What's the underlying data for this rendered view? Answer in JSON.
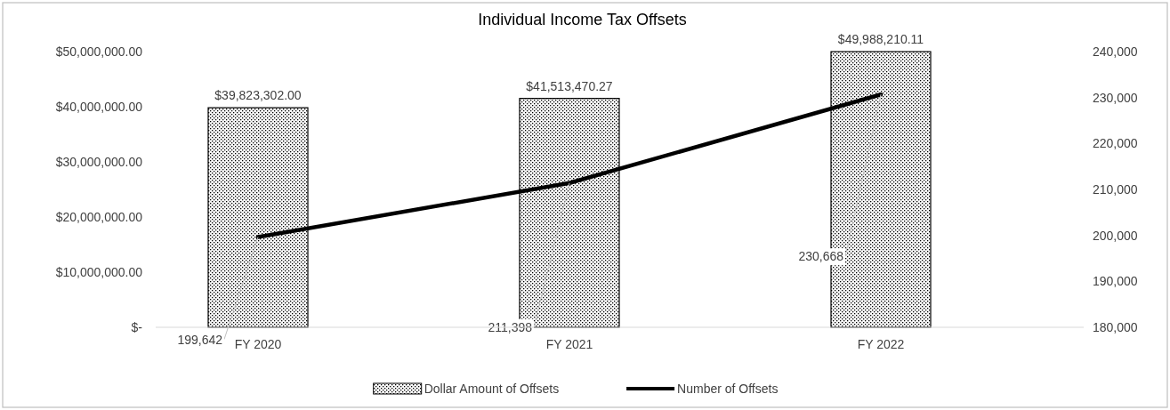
{
  "chart_data": {
    "type": "bar",
    "title": "Individual Income Tax Offsets",
    "categories": [
      "FY 2020",
      "FY 2021",
      "FY 2022"
    ],
    "series": [
      {
        "name": "Dollar Amount of Offsets",
        "color": "#000000",
        "values": [
          39823302.0,
          41513470.27,
          49988210.11
        ],
        "value_labels": [
          "$39,823,302.00",
          "$41,513,470.27",
          "$49,988,210.11"
        ]
      },
      {
        "name": "Number of Offsets",
        "type": "line",
        "axis": "y2",
        "color": "#000000",
        "values": [
          199642,
          211398,
          230668
        ],
        "value_labels": [
          "199,642",
          "211,398",
          "230,668"
        ]
      }
    ],
    "ylim": [
      0,
      50000000
    ],
    "yticks": [
      {
        "value": 0,
        "label": "$-"
      },
      {
        "value": 10000000,
        "label": "$10,000,000.00"
      },
      {
        "value": 20000000,
        "label": "$20,000,000.00"
      },
      {
        "value": 30000000,
        "label": "$30,000,000.00"
      },
      {
        "value": 40000000,
        "label": "$40,000,000.00"
      },
      {
        "value": 50000000,
        "label": "$50,000,000.00"
      }
    ],
    "y2lim": [
      180000,
      240000
    ],
    "y2ticks": [
      {
        "value": 180000,
        "label": "180,000"
      },
      {
        "value": 190000,
        "label": "190,000"
      },
      {
        "value": 200000,
        "label": "200,000"
      },
      {
        "value": 210000,
        "label": "210,000"
      },
      {
        "value": 220000,
        "label": "220,000"
      },
      {
        "value": 230000,
        "label": "230,000"
      },
      {
        "value": 240000,
        "label": "240,000"
      }
    ],
    "legend": "bottom",
    "marker": "none",
    "line_style": "solid"
  }
}
